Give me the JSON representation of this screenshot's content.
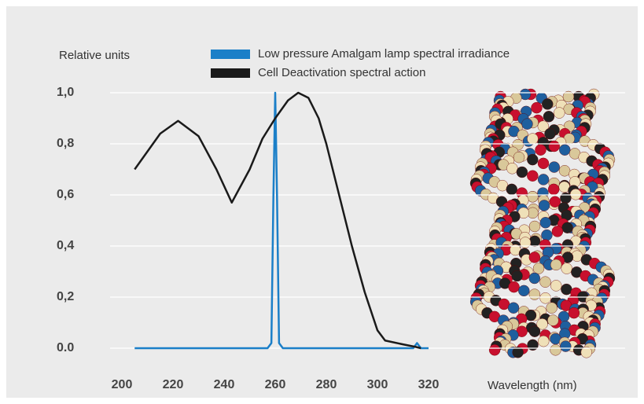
{
  "chart_data": {
    "type": "line",
    "y_label": "Relative units",
    "x_label": "Wavelength (nm)",
    "xlim": [
      200,
      320
    ],
    "xticks": [
      200,
      220,
      240,
      260,
      280,
      300,
      320
    ],
    "ylim": [
      0,
      1
    ],
    "yticks": [
      {
        "value": 0,
        "label": "0.0"
      },
      {
        "value": 0.2,
        "label": "0,2"
      },
      {
        "value": 0.4,
        "label": "0,4"
      },
      {
        "value": 0.6,
        "label": "0,6"
      },
      {
        "value": 0.8,
        "label": "0,8"
      },
      {
        "value": 1,
        "label": "1,0"
      }
    ],
    "grid": true,
    "series": [
      {
        "name": "Low pressure Amalgam lamp spectral irradiance",
        "color": "#1b7fc8",
        "x": [
          205,
          230,
          257,
          258.5,
          259.3,
          260,
          260.7,
          261.5,
          263,
          290,
          314,
          315.5,
          317,
          320
        ],
        "values": [
          0,
          0,
          0,
          0.02,
          0.6,
          1.0,
          0.6,
          0.02,
          0,
          0,
          0,
          0.02,
          0,
          0
        ]
      },
      {
        "name": "Cell Deactivation spectral action",
        "color": "#1a1a1a",
        "x": [
          205,
          210,
          215,
          222,
          230,
          237,
          243,
          250,
          255,
          260,
          265,
          269,
          273,
          277,
          280,
          285,
          290,
          295,
          300,
          303,
          310,
          315,
          317
        ],
        "values": [
          0.7,
          0.77,
          0.84,
          0.89,
          0.83,
          0.7,
          0.57,
          0.7,
          0.82,
          0.9,
          0.97,
          1.0,
          0.98,
          0.9,
          0.8,
          0.6,
          0.4,
          0.22,
          0.07,
          0.03,
          0.015,
          0.005,
          0
        ]
      }
    ]
  }
}
